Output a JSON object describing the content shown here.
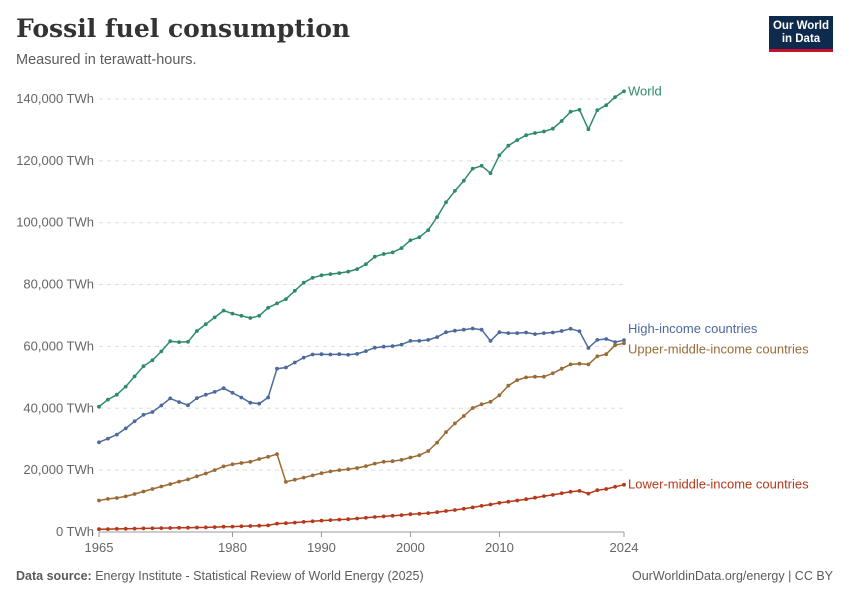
{
  "header": {
    "title": "Fossil fuel consumption",
    "subtitle": "Measured in terawatt-hours."
  },
  "logo": {
    "line1": "Our World",
    "line2": "in Data"
  },
  "footer": {
    "source_label": "Data source:",
    "source_text": "Energy Institute - Statistical Review of World Energy (2025)",
    "right_text": "OurWorldinData.org/energy | CC BY"
  },
  "chart_data": {
    "type": "line",
    "title": "Fossil fuel consumption",
    "subtitle": "Measured in terawatt-hours.",
    "xlim": [
      1965,
      2024
    ],
    "ylim": [
      0,
      140000
    ],
    "grid": true,
    "x_ticks": [
      1965,
      1980,
      1990,
      2000,
      2010,
      2024
    ],
    "y_ticks": [
      {
        "value": 0,
        "label": "0 TWh"
      },
      {
        "value": 20000,
        "label": "20,000 TWh"
      },
      {
        "value": 40000,
        "label": "40,000 TWh"
      },
      {
        "value": 60000,
        "label": "60,000 TWh"
      },
      {
        "value": 80000,
        "label": "80,000 TWh"
      },
      {
        "value": 100000,
        "label": "100,000 TWh"
      },
      {
        "value": 120000,
        "label": "120,000 TWh"
      },
      {
        "value": 140000,
        "label": "140,000 TWh"
      }
    ],
    "x": [
      1965,
      1966,
      1967,
      1968,
      1969,
      1970,
      1971,
      1972,
      1973,
      1974,
      1975,
      1976,
      1977,
      1978,
      1979,
      1980,
      1981,
      1982,
      1983,
      1984,
      1985,
      1986,
      1987,
      1988,
      1989,
      1990,
      1991,
      1992,
      1993,
      1994,
      1995,
      1996,
      1997,
      1998,
      1999,
      2000,
      2001,
      2002,
      2003,
      2004,
      2005,
      2006,
      2007,
      2008,
      2009,
      2010,
      2011,
      2012,
      2013,
      2014,
      2015,
      2016,
      2017,
      2018,
      2019,
      2020,
      2021,
      2022,
      2023,
      2024
    ],
    "series": [
      {
        "name": "World",
        "color": "#2e8b6a",
        "values": [
          40500,
          42800,
          44400,
          47000,
          50300,
          53600,
          55500,
          58400,
          61700,
          61400,
          61500,
          65000,
          67200,
          69400,
          71600,
          70600,
          69900,
          69200,
          69900,
          72500,
          73900,
          75300,
          78000,
          80600,
          82200,
          83000,
          83400,
          83700,
          84200,
          85000,
          86600,
          89000,
          89900,
          90400,
          91800,
          94300,
          95300,
          97600,
          101800,
          106600,
          110300,
          113600,
          117500,
          118400,
          116000,
          121800,
          124900,
          126700,
          128300,
          129000,
          129500,
          130400,
          132900,
          135900,
          136500,
          130200,
          136400,
          138000,
          140600,
          142500
        ]
      },
      {
        "name": "High-income countries",
        "color": "#4c6a9c",
        "values": [
          29000,
          30200,
          31500,
          33500,
          35800,
          37900,
          38800,
          40900,
          43200,
          42000,
          41000,
          43300,
          44400,
          45300,
          46500,
          45000,
          43500,
          41800,
          41500,
          43500,
          52800,
          53200,
          54800,
          56400,
          57400,
          57500,
          57400,
          57500,
          57300,
          57600,
          58500,
          59600,
          59900,
          60100,
          60600,
          61800,
          61800,
          62100,
          63000,
          64600,
          65100,
          65400,
          65800,
          65400,
          61800,
          64600,
          64300,
          64300,
          64500,
          64000,
          64300,
          64500,
          65000,
          65700,
          64900,
          59500,
          62100,
          62400,
          61400,
          62000
        ]
      },
      {
        "name": "Upper-middle-income countries",
        "color": "#9a6b35",
        "values": [
          10200,
          10700,
          11000,
          11500,
          12300,
          13100,
          13900,
          14700,
          15500,
          16300,
          17000,
          18000,
          18900,
          20000,
          21200,
          21900,
          22300,
          22700,
          23600,
          24300,
          25200,
          16200,
          16900,
          17600,
          18300,
          19000,
          19600,
          20000,
          20300,
          20700,
          21300,
          22100,
          22700,
          22900,
          23300,
          24100,
          24800,
          26200,
          28900,
          32300,
          35100,
          37500,
          40100,
          41300,
          42100,
          44200,
          47300,
          49100,
          50000,
          50200,
          50200,
          51300,
          52800,
          54200,
          54400,
          54200,
          56800,
          57500,
          60400,
          61000
        ]
      },
      {
        "name": "Lower-middle-income countries",
        "color": "#b5391a",
        "values": [
          900,
          950,
          1000,
          1050,
          1100,
          1150,
          1200,
          1250,
          1300,
          1350,
          1400,
          1450,
          1500,
          1600,
          1700,
          1750,
          1850,
          1950,
          2050,
          2150,
          2700,
          2850,
          3050,
          3250,
          3450,
          3700,
          3850,
          4000,
          4150,
          4350,
          4600,
          4850,
          5050,
          5250,
          5450,
          5750,
          5900,
          6100,
          6400,
          6800,
          7100,
          7500,
          7950,
          8450,
          8900,
          9400,
          9800,
          10200,
          10600,
          11100,
          11600,
          12000,
          12500,
          13000,
          13300,
          12400,
          13500,
          13900,
          14600,
          15300
        ]
      }
    ]
  }
}
